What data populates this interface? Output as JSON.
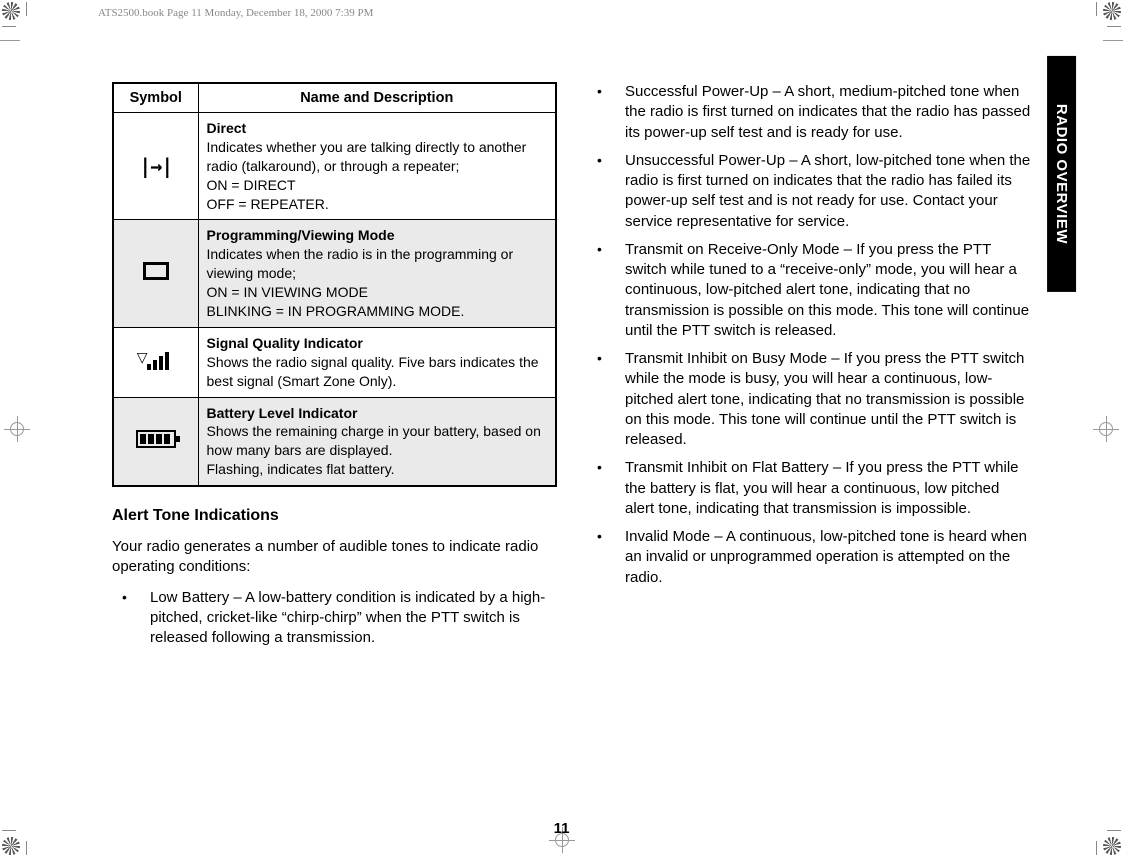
{
  "printHeader": "ATS2500.book  Page 11  Monday, December 18, 2000  7:39 PM",
  "sideTab": "RADIO OVERVIEW",
  "pageNumber": "11",
  "table": {
    "headers": {
      "symbol": "Symbol",
      "desc": "Name and Description"
    },
    "rows": [
      {
        "title": "Direct",
        "body": "Indicates whether you are talking directly to another radio (talkaround), or through a repeater;\nON = DIRECT\nOFF = REPEATER."
      },
      {
        "title": "Programming/Viewing Mode",
        "body": "Indicates when the radio is in the programming or viewing mode;\nON = IN VIEWING MODE\nBLINKING = IN PROGRAMMING MODE."
      },
      {
        "title": "Signal Quality Indicator",
        "body": "Shows the radio signal quality. Five bars indicates the best signal (Smart Zone Only)."
      },
      {
        "title": "Battery Level Indicator",
        "body": "Shows the remaining charge in your battery, based on how many bars are displayed.\nFlashing, indicates flat battery."
      }
    ]
  },
  "section": {
    "heading": "Alert Tone Indications",
    "intro": "Your radio generates a number of audible tones to indicate radio operating conditions:"
  },
  "bulletsLeft": [
    "Low Battery – A low-battery condition is indicated by a high-pitched, cricket-like “chirp-chirp” when the PTT switch is released following a transmission."
  ],
  "bulletsRight": [
    "Successful Power-Up – A short, medium-pitched tone when the radio is first turned on indicates that the radio has passed its power-up self test and is ready for use.",
    "Unsuccessful Power-Up – A short, low-pitched tone when the radio is first turned on indicates that the radio has failed its power-up self test and is not ready for use. Contact your service representative for service.",
    "Transmit on Receive-Only Mode – If you press the PTT switch while tuned to a “receive-only” mode, you will hear a continuous, low-pitched alert tone, indicating that no transmission is possible on this mode. This tone will continue until the PTT switch is released.",
    "Transmit Inhibit on Busy Mode – If you press the PTT switch while the mode is busy, you will hear a continuous, low-pitched alert tone, indicating that no transmission is possible on this mode. This tone will continue until the PTT switch is released.",
    "Transmit Inhibit on Flat Battery – If you press the PTT while the battery is flat, you will hear a continuous, low pitched alert tone, indicating that transmission is impossible.",
    "Invalid Mode – A continuous, low-pitched tone is heard when an invalid or unprogrammed operation is attempted on the radio."
  ]
}
